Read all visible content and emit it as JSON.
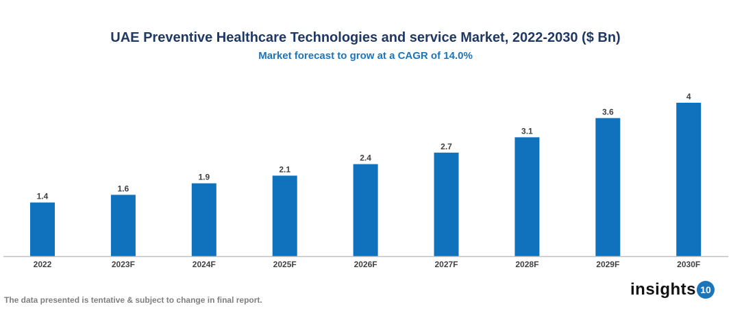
{
  "chart_data": {
    "type": "bar",
    "title": "UAE Preventive Healthcare Technologies and service Market, 2022-2030 ($ Bn)",
    "subtitle": "Market forecast to grow at a CAGR of 14.0%",
    "categories": [
      "2022",
      "2023F",
      "2024F",
      "2025F",
      "2026F",
      "2027F",
      "2028F",
      "2029F",
      "2030F"
    ],
    "values": [
      1.4,
      1.6,
      1.9,
      2.1,
      2.4,
      2.7,
      3.1,
      3.6,
      4
    ],
    "ylim": [
      0,
      4
    ],
    "grid": false,
    "bar_color": "#1072bd",
    "xlabel": "",
    "ylabel": ""
  },
  "footer": {
    "note": "The data presented is tentative & subject to change in final report."
  },
  "logo": {
    "text": "insights",
    "badge": "10",
    "color": "#1a75bb"
  }
}
